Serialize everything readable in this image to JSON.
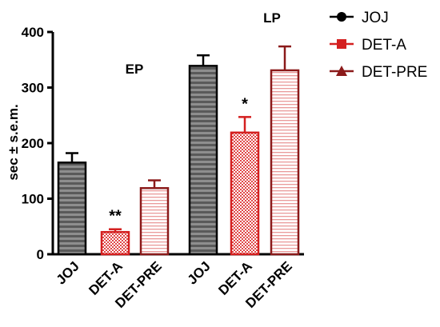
{
  "chart_data": {
    "type": "bar",
    "ylabel": "sec ± s.e.m.",
    "ylim": [
      0,
      400
    ],
    "yticks": [
      0,
      100,
      200,
      300,
      400
    ],
    "categories": [
      "JOJ",
      "DET-A",
      "DET-PRE",
      "JOJ",
      "DET-A",
      "DET-PRE"
    ],
    "groups": [
      {
        "label": "EP",
        "bars": [
          0,
          1,
          2
        ]
      },
      {
        "label": "LP",
        "bars": [
          3,
          4,
          5
        ]
      }
    ],
    "bars": [
      {
        "category": "JOJ",
        "series": "JOJ",
        "value": 165,
        "sem": 17,
        "annotation": ""
      },
      {
        "category": "DET-A",
        "series": "DET-A",
        "value": 40,
        "sem": 5,
        "annotation": "**"
      },
      {
        "category": "DET-PRE",
        "series": "DET-PRE",
        "value": 119,
        "sem": 14,
        "annotation": ""
      },
      {
        "category": "JOJ",
        "series": "JOJ",
        "value": 339,
        "sem": 19,
        "annotation": ""
      },
      {
        "category": "DET-A",
        "series": "DET-A",
        "value": 219,
        "sem": 28,
        "annotation": "*"
      },
      {
        "category": "DET-PRE",
        "series": "DET-PRE",
        "value": 331,
        "sem": 43,
        "annotation": ""
      }
    ],
    "legend": {
      "position": "top-right",
      "entries": [
        {
          "name": "JOJ",
          "marker": "circle",
          "color": "#000000"
        },
        {
          "name": "DET-A",
          "marker": "square",
          "color": "#d42020"
        },
        {
          "name": "DET-PRE",
          "marker": "triangle",
          "color": "#8b1a1a"
        }
      ]
    },
    "colors": {
      "JOJ_fill": "#555555",
      "JOJ_stripe": "#9a9a9a",
      "DET-A_stroke": "#d42020",
      "DET-A_pattern": "#e05050",
      "DET-PRE_stroke": "#8b1a1a",
      "DET-PRE_stripe": "#e88888"
    }
  }
}
